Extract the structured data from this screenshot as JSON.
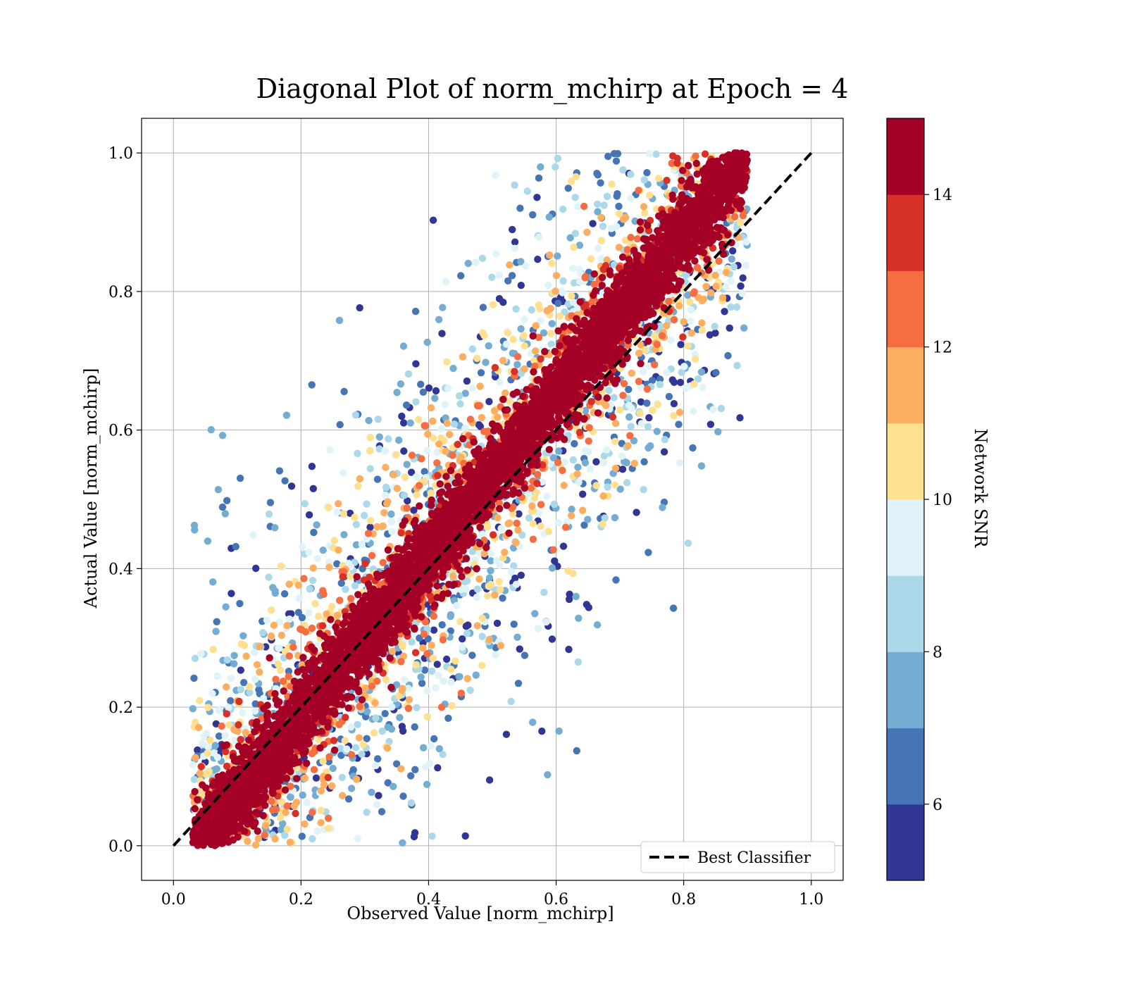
{
  "chart_data": {
    "type": "scatter",
    "title": "Diagonal Plot of norm_mchirp at Epoch = 4",
    "xlabel": "Observed Value [norm_mchirp]",
    "ylabel": "Actual Value [norm_mchirp]",
    "xlim": [
      -0.05,
      1.05
    ],
    "ylim": [
      -0.05,
      1.05
    ],
    "xticks": [
      "0.0",
      "0.2",
      "0.4",
      "0.6",
      "0.8",
      "1.0"
    ],
    "yticks": [
      "0.0",
      "0.2",
      "0.4",
      "0.6",
      "0.8",
      "1.0"
    ],
    "grid": true,
    "reference_line": {
      "label": "Best Classifier",
      "style": "dashed",
      "color": "#000000",
      "x": [
        0,
        1
      ],
      "y": [
        0,
        1
      ]
    },
    "legend": {
      "position": "lower-right",
      "entries": [
        "Best Classifier"
      ]
    },
    "colorbar": {
      "label": "Network SNR",
      "range": [
        5,
        15
      ],
      "ticks": [
        "6",
        "8",
        "10",
        "12",
        "14"
      ],
      "colormap": [
        "#313695",
        "#4575b4",
        "#74add1",
        "#abd9e9",
        "#e0f3f8",
        "#fee090",
        "#fdae61",
        "#f46d43",
        "#d73027",
        "#a50026"
      ]
    },
    "series_summary": {
      "description_of_relation": "actual ≈ observed; high SNR points cluster tightly on the diagonal, low SNR points scatter widely",
      "point_count_estimate": 60000
    }
  }
}
